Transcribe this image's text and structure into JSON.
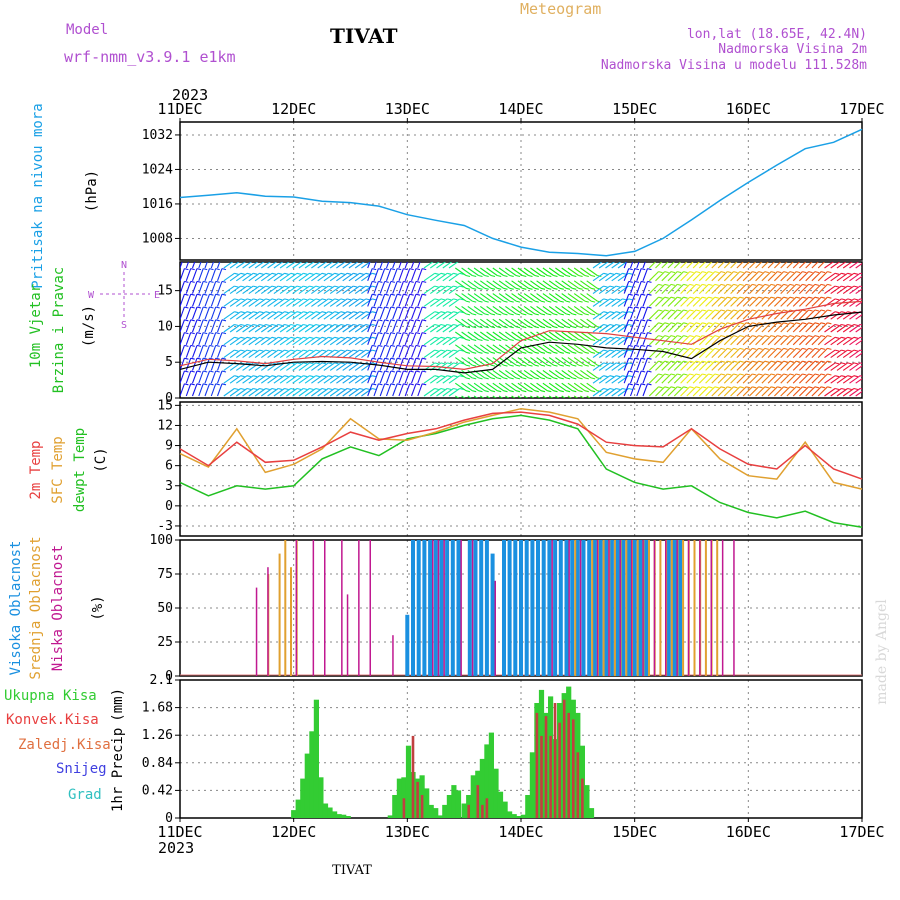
{
  "header": {
    "model_label": "Model",
    "model_name": "wrf-nmm_v3.9.1  e1km",
    "station": "TIVAT",
    "product": "Meteogram",
    "location_line": "lon,lat (18.65E, 42.4N)",
    "altitude_line": "Nadmorska Visina 2m",
    "model_altitude_line": "Nadmorska Visina u modelu 111.528m",
    "footer_station": "TIVAT",
    "credit": "made by Angel"
  },
  "colors": {
    "pressure": "#1aa0e6",
    "speed": "#000000",
    "gust": "#e04040",
    "temp2m": "#e84040",
    "sfc": "#e0a030",
    "dew": "#22c022",
    "high_cloud": "#1a90e0",
    "mid_cloud": "#e0a030",
    "low_cloud": "#c01890",
    "total_precip": "#33cc33",
    "conv_precip": "#c04040"
  },
  "time_axis": {
    "year": "2023",
    "ticks": [
      "11DEC",
      "12DEC",
      "13DEC",
      "14DEC",
      "15DEC",
      "16DEC",
      "17DEC"
    ]
  },
  "chart_data": [
    {
      "type": "line",
      "ylabel": "Pritisak na nivou mora",
      "unit": "(hPa)",
      "yticks": [
        "1008",
        "1016",
        "1024",
        "1032"
      ],
      "ylim": [
        1003,
        1035
      ],
      "x": [
        0,
        0.25,
        0.5,
        0.75,
        1,
        1.25,
        1.5,
        1.75,
        2,
        2.25,
        2.5,
        2.75,
        3,
        3.25,
        3.5,
        3.75,
        4,
        4.25,
        4.5,
        4.75,
        5,
        5.25,
        5.5,
        5.75,
        6
      ],
      "values": [
        1017.5,
        1018,
        1018.6,
        1017.8,
        1017.6,
        1016.6,
        1016.3,
        1015.5,
        1013.5,
        1012.2,
        1011,
        1008,
        1006,
        1004.8,
        1004.5,
        1004,
        1005,
        1008,
        1012.3,
        1016.8,
        1021,
        1025,
        1028.8,
        1030.3,
        1033.3
      ]
    },
    {
      "type": "line",
      "ylabel_1": "10m Vjetar",
      "ylabel_2": "Brzina i Pravac",
      "unit": "(m/s)",
      "compass": [
        "N",
        "E",
        "W",
        "S"
      ],
      "yticks": [
        "0",
        "5",
        "10",
        "15"
      ],
      "ylim": [
        0,
        19
      ],
      "x": [
        0,
        0.25,
        0.5,
        0.75,
        1,
        1.25,
        1.5,
        1.75,
        2,
        2.25,
        2.5,
        2.75,
        3,
        3.25,
        3.5,
        3.75,
        4,
        4.25,
        4.5,
        4.75,
        5,
        5.25,
        5.5,
        5.75,
        6
      ],
      "series": [
        {
          "name": "speed",
          "values": [
            4,
            5,
            4.8,
            4.5,
            5,
            5.1,
            5,
            4.6,
            4,
            4,
            3.5,
            4,
            7,
            7.8,
            7.5,
            7,
            6.8,
            6.5,
            5.5,
            8,
            10,
            10.6,
            11,
            11.6,
            12
          ]
        },
        {
          "name": "gust",
          "values": [
            4.5,
            5.4,
            5.2,
            4.8,
            5.4,
            5.8,
            5.6,
            5,
            4.5,
            4.4,
            4,
            4.8,
            8,
            9.4,
            9.2,
            9,
            8.5,
            8,
            7.5,
            9.6,
            11,
            11.8,
            12.4,
            13.2,
            13.5
          ]
        }
      ],
      "barbs_hue_by_time": [
        240,
        230,
        195,
        195,
        190,
        195,
        200,
        235,
        245,
        160,
        130,
        125,
        120,
        120,
        110,
        195,
        240,
        90,
        60,
        45,
        30,
        25,
        18,
        350,
        340
      ]
    },
    {
      "type": "line",
      "ylabel_1": "2m Temp",
      "ylabel_2": "SFC Temp",
      "ylabel_3": "dewpt Temp",
      "unit": "(C)",
      "yticks": [
        "-3",
        "0",
        "3",
        "6",
        "9",
        "12",
        "15"
      ],
      "ylim": [
        -4.5,
        15.5
      ],
      "x": [
        0,
        0.25,
        0.5,
        0.75,
        1,
        1.25,
        1.5,
        1.75,
        2,
        2.25,
        2.5,
        2.75,
        3,
        3.25,
        3.5,
        3.75,
        4,
        4.25,
        4.5,
        4.75,
        5,
        5.25,
        5.5,
        5.75,
        6
      ],
      "series": [
        {
          "name": "2m Temp",
          "values": [
            8.5,
            6,
            9.5,
            6.5,
            6.8,
            8.8,
            11,
            9.8,
            10.8,
            11.5,
            12.8,
            13.8,
            14,
            13.5,
            12.2,
            9.5,
            9,
            8.8,
            11.5,
            8.5,
            6.2,
            5.5,
            9,
            5.5,
            4
          ]
        },
        {
          "name": "SFC Temp",
          "values": [
            7.8,
            5.8,
            11.5,
            5,
            6.2,
            8.5,
            13,
            10,
            9.8,
            11,
            12.5,
            13.5,
            14.5,
            14,
            13,
            8,
            7,
            6.5,
            11.5,
            7,
            4.5,
            4,
            9.5,
            3.5,
            2.5
          ]
        },
        {
          "name": "dewpt Temp",
          "values": [
            3.5,
            1.5,
            3,
            2.5,
            3,
            7,
            8.8,
            7.5,
            10,
            10.8,
            12,
            13,
            13.5,
            12.8,
            11.5,
            5.5,
            3.5,
            2.5,
            3,
            0.5,
            -1,
            -1.8,
            -0.8,
            -2.5,
            -3.2
          ]
        }
      ]
    },
    {
      "type": "bar",
      "ylabel_1": "Visoka Oblacnost",
      "ylabel_2": "Srednja Oblacnost",
      "ylabel_3": "Niska Oblacnost",
      "unit": "(%)",
      "yticks": [
        "0",
        "25",
        "50",
        "75",
        "100"
      ],
      "ylim": [
        0,
        100
      ],
      "series": [
        {
          "name": "Visoka Oblacnost",
          "x": [
            2.0,
            2.05,
            2.1,
            2.15,
            2.2,
            2.25,
            2.3,
            2.35,
            2.4,
            2.45,
            2.55,
            2.6,
            2.65,
            2.7,
            2.75,
            2.85,
            2.9,
            2.95,
            3.0,
            3.05,
            3.1,
            3.15,
            3.2,
            3.25,
            3.3,
            3.35,
            3.4,
            3.45,
            3.5,
            3.55,
            3.6,
            3.65,
            3.7,
            3.75,
            3.8,
            3.85,
            3.9,
            3.95,
            4.0,
            4.05,
            4.1,
            4.3,
            4.35,
            4.4
          ],
          "values": [
            45,
            100,
            100,
            100,
            100,
            100,
            100,
            100,
            100,
            100,
            100,
            100,
            100,
            100,
            90,
            100,
            100,
            100,
            100,
            100,
            100,
            100,
            100,
            100,
            100,
            100,
            100,
            100,
            100,
            100,
            100,
            100,
            100,
            100,
            100,
            100,
            100,
            100,
            100,
            100,
            100,
            100,
            100,
            100
          ]
        },
        {
          "name": "Srednja Oblacnost",
          "x": [
            0.75,
            0.85,
            0.9,
            0.95,
            1.0,
            3.45,
            3.6,
            3.65,
            3.7,
            3.75,
            3.8,
            3.85,
            3.9,
            3.95,
            4.0,
            4.05,
            4.1,
            4.15,
            4.2,
            4.25,
            4.3,
            4.35,
            4.4,
            4.45,
            4.5,
            4.55,
            4.6,
            4.65,
            4.7
          ],
          "values": [
            75,
            90,
            100,
            80,
            100,
            100,
            100,
            100,
            100,
            100,
            100,
            100,
            100,
            100,
            100,
            100,
            100,
            100,
            100,
            100,
            100,
            100,
            100,
            100,
            100,
            100,
            100,
            100,
            100
          ]
        },
        {
          "name": "Niska Oblacnost",
          "x": [
            0.7,
            0.8,
            1.05,
            1.2,
            1.3,
            1.45,
            1.5,
            1.6,
            1.7,
            1.9,
            2.25,
            2.3,
            2.35,
            2.5,
            2.6,
            2.8,
            3.3,
            3.45,
            3.55,
            3.7,
            3.8,
            3.9,
            4.0,
            4.1,
            4.2,
            4.3,
            4.4,
            4.5,
            4.6,
            4.7,
            4.8,
            4.9
          ],
          "values": [
            65,
            80,
            100,
            100,
            100,
            100,
            60,
            100,
            100,
            30,
            100,
            100,
            100,
            100,
            100,
            70,
            100,
            100,
            100,
            100,
            100,
            100,
            100,
            100,
            100,
            100,
            100,
            100,
            100,
            100,
            100,
            100
          ]
        }
      ]
    },
    {
      "type": "bar",
      "ylabel": "1hr Precip",
      "unit": "(mm)",
      "legend": [
        "Ukupna Kisa",
        "Konvek.Kisa",
        "Zaledj.Kisa",
        "Snijeg",
        "Grad"
      ],
      "yticks": [
        "0",
        "0.42",
        "0.84",
        "1.26",
        "1.68",
        "2.1"
      ],
      "ylim": [
        0,
        2.1
      ],
      "series": [
        {
          "name": "Ukupna Kisa",
          "x": [
            1.0,
            1.04,
            1.08,
            1.12,
            1.16,
            1.2,
            1.24,
            1.28,
            1.32,
            1.36,
            1.4,
            1.44,
            1.48,
            1.85,
            1.89,
            1.93,
            1.97,
            2.01,
            2.05,
            2.09,
            2.13,
            2.17,
            2.21,
            2.25,
            2.29,
            2.33,
            2.37,
            2.41,
            2.45,
            2.5,
            2.54,
            2.58,
            2.62,
            2.66,
            2.7,
            2.74,
            2.78,
            2.82,
            2.86,
            2.9,
            2.94,
            2.98,
            3.02,
            3.06,
            3.1,
            3.14,
            3.18,
            3.22,
            3.26,
            3.3,
            3.34,
            3.38,
            3.42,
            3.46,
            3.5,
            3.54,
            3.58,
            3.62
          ],
          "values": [
            0.12,
            0.28,
            0.6,
            0.98,
            1.32,
            1.8,
            0.62,
            0.22,
            0.16,
            0.1,
            0.06,
            0.05,
            0.03,
            0.04,
            0.35,
            0.6,
            0.62,
            1.1,
            0.7,
            0.6,
            0.65,
            0.45,
            0.2,
            0.15,
            0.04,
            0.2,
            0.35,
            0.5,
            0.42,
            0.22,
            0.35,
            0.65,
            0.72,
            0.9,
            1.12,
            1.3,
            0.75,
            0.4,
            0.25,
            0.1,
            0.06,
            0.03,
            0.05,
            0.35,
            1.0,
            1.75,
            1.95,
            1.6,
            1.85,
            1.2,
            1.75,
            1.9,
            2.0,
            1.8,
            1.6,
            1.1,
            0.5,
            0.15
          ]
        },
        {
          "name": "Konvek.Kisa",
          "x": [
            1.97,
            2.05,
            2.09,
            2.13,
            2.54,
            2.62,
            2.66,
            2.7,
            3.14,
            3.18,
            3.22,
            3.26,
            3.3,
            3.34,
            3.38,
            3.42,
            3.46,
            3.5,
            3.54
          ],
          "values": [
            0.3,
            1.25,
            0.55,
            0.35,
            0.2,
            0.5,
            0.2,
            0.3,
            1.6,
            1.25,
            1.55,
            1.25,
            1.75,
            1.45,
            1.8,
            1.6,
            1.5,
            1.0,
            0.6
          ]
        }
      ]
    }
  ]
}
